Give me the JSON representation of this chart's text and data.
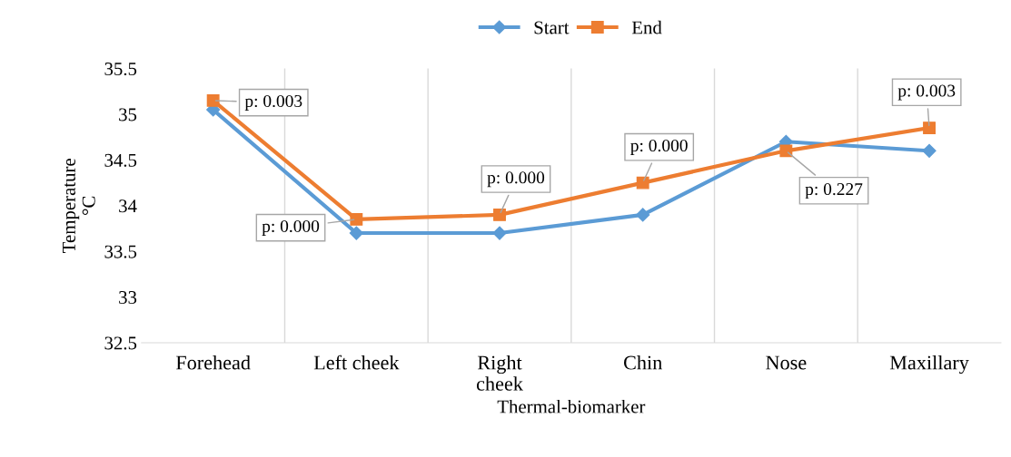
{
  "chart_data": {
    "type": "line",
    "xlabel": "Thermal-biomarker",
    "ylabel": "Temperature\n°C",
    "categories": [
      "Forehead",
      "Left cheek",
      "Right\ncheek",
      "Chin",
      "Nose",
      "Maxillary"
    ],
    "series": [
      {
        "name": "Start",
        "color": "#5b9bd5",
        "marker": "diamond",
        "values": [
          35.05,
          33.7,
          33.7,
          33.9,
          34.7,
          34.6
        ]
      },
      {
        "name": "End",
        "color": "#ed7d31",
        "marker": "square",
        "values": [
          35.15,
          33.85,
          33.9,
          34.25,
          34.6,
          34.85
        ]
      }
    ],
    "ylim": [
      32.5,
      35.5
    ],
    "yticks": [
      32.5,
      33,
      33.5,
      34,
      34.5,
      35,
      35.5
    ],
    "grid": "x",
    "legend": "top",
    "annotations": [
      {
        "text": "p: 0.003",
        "x": "Forehead",
        "y": 35.15
      },
      {
        "text": "p: 0.000",
        "x": "Left cheek",
        "y": 33.85
      },
      {
        "text": "p: 0.000",
        "x": "Right\ncheek",
        "y": 33.9
      },
      {
        "text": "p: 0.000",
        "x": "Chin",
        "y": 34.25
      },
      {
        "text": "p: 0.227",
        "x": "Nose",
        "y": 34.6
      },
      {
        "text": "p: 0.003",
        "x": "Maxillary",
        "y": 34.85
      }
    ]
  }
}
